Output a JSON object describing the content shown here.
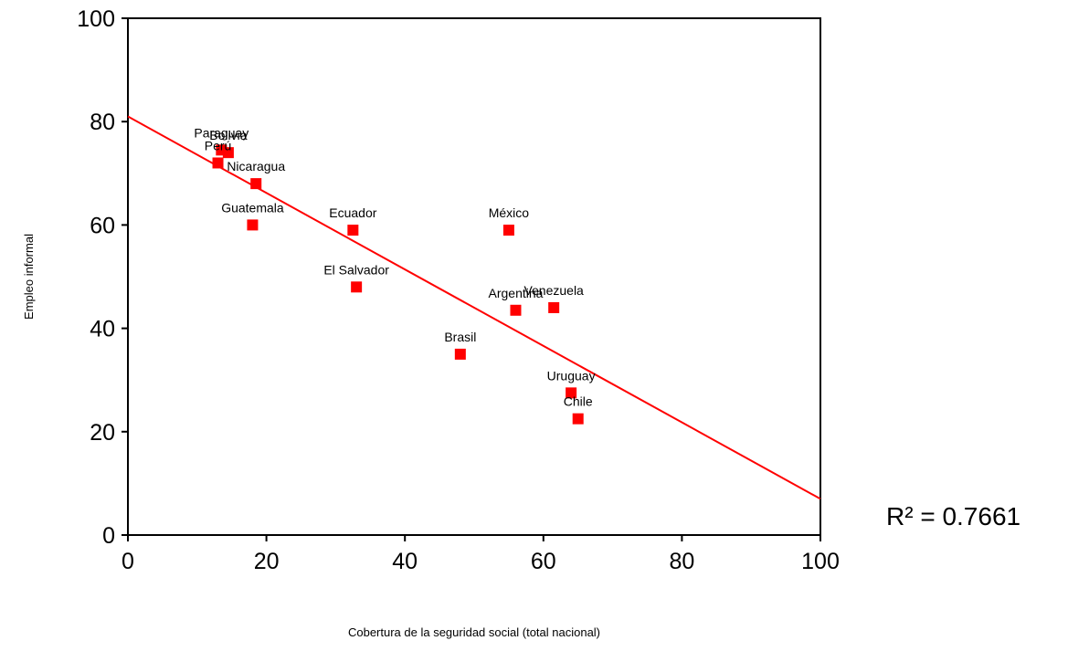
{
  "chart_data": {
    "type": "scatter",
    "xlabel": "Cobertura de la seguridad social (total nacional)",
    "ylabel": "Empleo informal",
    "xlim": [
      0,
      100
    ],
    "ylim": [
      0,
      100
    ],
    "x_ticks": [
      0,
      20,
      40,
      60,
      80,
      100
    ],
    "y_ticks": [
      0,
      20,
      40,
      60,
      80,
      100
    ],
    "grid": false,
    "legend": "none",
    "point_color": "#ff0000",
    "line_color": "#ff0000",
    "points": [
      {
        "label": "Paraguay",
        "x": 13.5,
        "y": 74.5
      },
      {
        "label": "Bolivia",
        "x": 14.5,
        "y": 74
      },
      {
        "label": "Perú",
        "x": 13,
        "y": 72
      },
      {
        "label": "Nicaragua",
        "x": 18.5,
        "y": 68
      },
      {
        "label": "Guatemala",
        "x": 18,
        "y": 60
      },
      {
        "label": "Ecuador",
        "x": 32.5,
        "y": 59
      },
      {
        "label": "México",
        "x": 55,
        "y": 59
      },
      {
        "label": "El Salvador",
        "x": 33,
        "y": 48
      },
      {
        "label": "Argentina",
        "x": 56,
        "y": 43.5
      },
      {
        "label": "Venezuela",
        "x": 61.5,
        "y": 44
      },
      {
        "label": "Brasil",
        "x": 48,
        "y": 35
      },
      {
        "label": "Uruguay",
        "x": 64,
        "y": 27.5
      },
      {
        "label": "Chile",
        "x": 65,
        "y": 22.5
      }
    ],
    "trendline": {
      "x": [
        0,
        100
      ],
      "y": [
        81,
        7
      ]
    },
    "annotation": "R² = 0.7661"
  }
}
